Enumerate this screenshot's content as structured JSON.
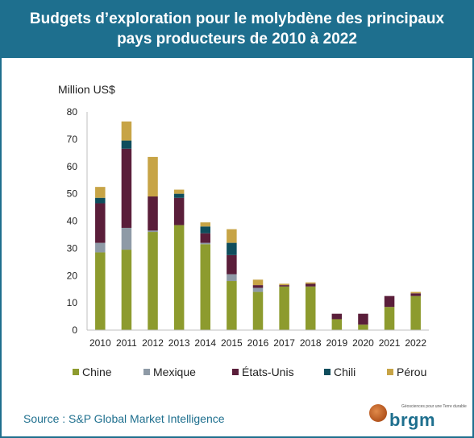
{
  "header": {
    "title": "Budgets d’exploration pour le molybdène des principaux pays producteurs de 2010 à 2022"
  },
  "source": "Source : S&P Global Market Intelligence",
  "logo": {
    "word": "brgm",
    "tagline": "Géosciences pour une Terre durable"
  },
  "chart_data": {
    "type": "bar",
    "stacked": true,
    "title": "Budgets d’exploration pour le molybdène des principaux pays producteurs de 2010 à 2022",
    "ylabel": "Million US$",
    "xlabel": "",
    "ylim": [
      0,
      80
    ],
    "yticks": [
      "0",
      "10",
      "20",
      "30",
      "40",
      "50",
      "60",
      "70",
      "80"
    ],
    "categories": [
      "2010",
      "2011",
      "2012",
      "2013",
      "2014",
      "2015",
      "2016",
      "2017",
      "2018",
      "2019",
      "2020",
      "2021",
      "2022"
    ],
    "grid": false,
    "legend_position": "bottom",
    "series": [
      {
        "name": "Chine",
        "color": "#8d9b2e",
        "values": [
          28.5,
          29.5,
          36,
          38.5,
          31.5,
          18,
          14,
          16,
          16,
          4,
          2,
          8.5,
          12.5
        ]
      },
      {
        "name": "Mexique",
        "color": "#8e9aa6",
        "values": [
          3.5,
          8,
          0.5,
          0,
          0.5,
          2.5,
          1.5,
          0,
          0,
          0,
          0,
          0,
          0
        ]
      },
      {
        "name": "États-Unis",
        "color": "#5a1e3a",
        "values": [
          14.5,
          29,
          12.5,
          10,
          3.5,
          7,
          1,
          0.5,
          1,
          2,
          4,
          4,
          1
        ]
      },
      {
        "name": "Chili",
        "color": "#0f4d5c",
        "values": [
          2,
          3,
          0,
          1.5,
          2.5,
          4.5,
          0,
          0,
          0,
          0,
          0,
          0,
          0
        ]
      },
      {
        "name": "Pérou",
        "color": "#c7a446",
        "values": [
          4,
          7,
          14.5,
          1.5,
          1.5,
          5,
          2,
          0.5,
          0.5,
          0,
          0,
          0,
          0.5
        ]
      }
    ]
  }
}
